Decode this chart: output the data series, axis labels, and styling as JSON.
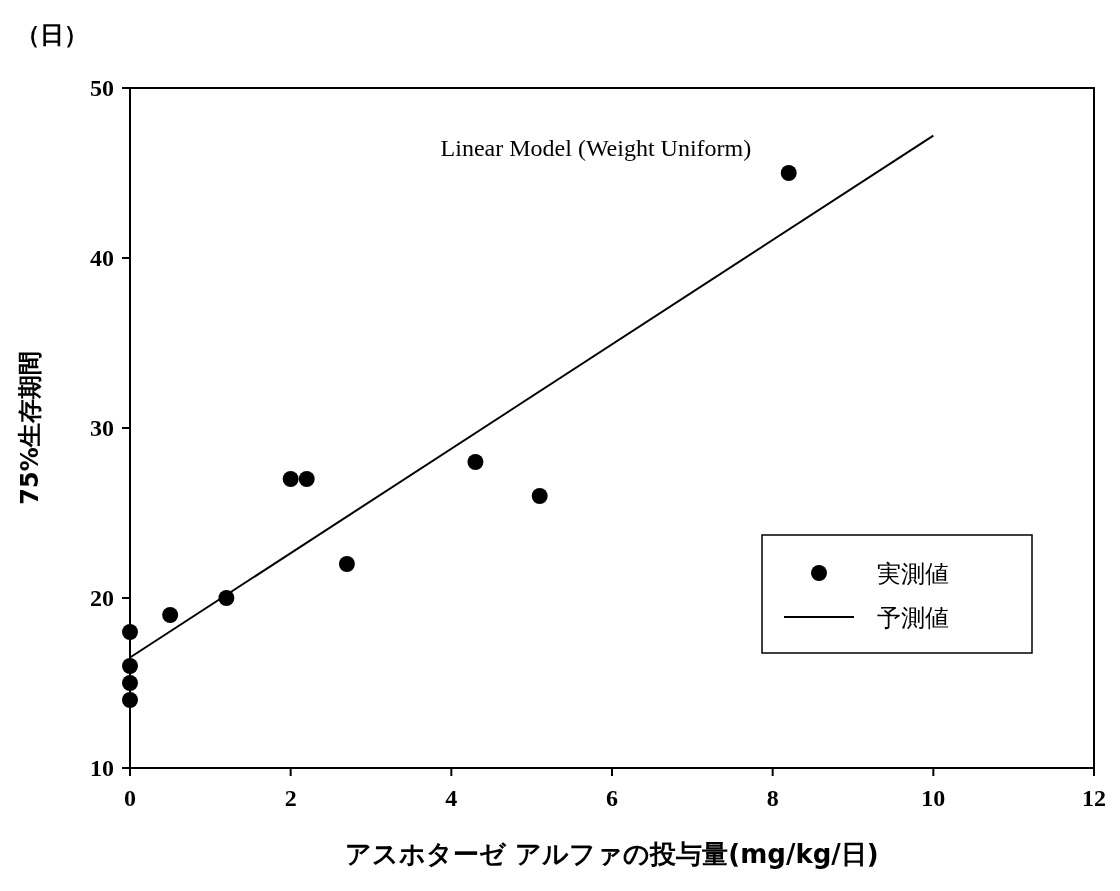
{
  "chart_data": {
    "type": "scatter",
    "title": "Linear Model (Weight Uniform)",
    "xlabel": "アスホターゼ アルファの投与量(mg/kg/日)",
    "ylabel": "75%生存期間",
    "annotations": [
      "（日）"
    ],
    "xlim": [
      0,
      12
    ],
    "xticks": [
      0,
      2,
      4,
      6,
      8,
      10,
      12
    ],
    "ylim": [
      10,
      50
    ],
    "yticks": [
      10,
      20,
      30,
      40,
      50
    ],
    "grid": false,
    "legend": "bottom right",
    "series": [
      {
        "name": "実測値",
        "marker": "circle",
        "color": "#000000",
        "x": [
          0,
          0,
          0,
          0,
          0.5,
          1.2,
          2,
          2.2,
          2.7,
          4.3,
          5.1,
          8.2
        ],
        "values": [
          18,
          16,
          15,
          14,
          19,
          20,
          27,
          27,
          22,
          28,
          26,
          45
        ]
      },
      {
        "name": "予測値",
        "type": "line",
        "color": "#000000",
        "line_style": "solid",
        "x": [
          0,
          10
        ],
        "values": [
          16.5,
          47.2
        ]
      }
    ]
  }
}
